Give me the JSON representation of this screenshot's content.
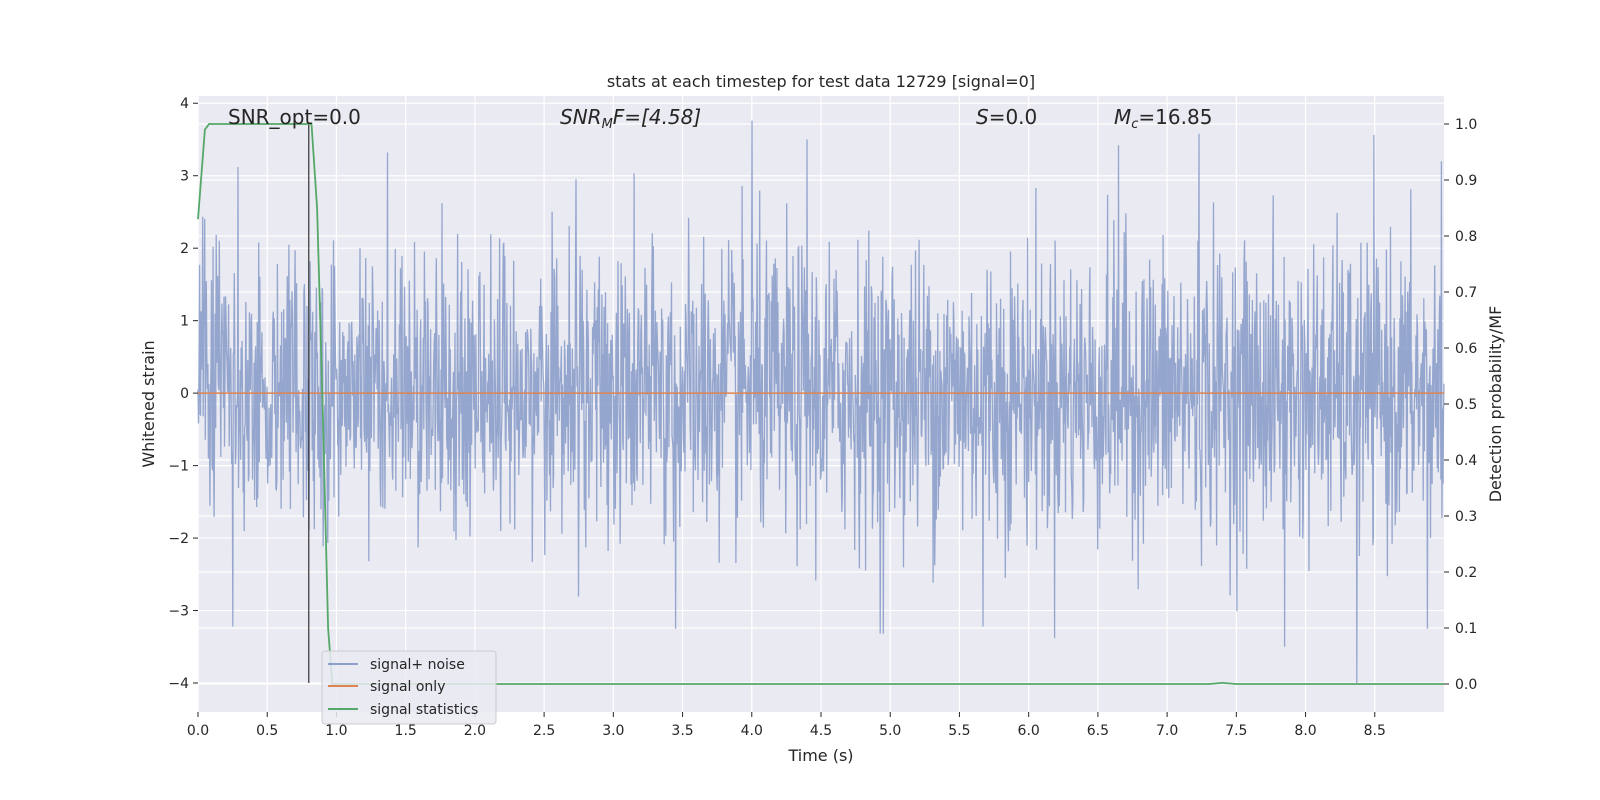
{
  "chart_data": {
    "type": "line",
    "title": "stats at each timestep for test data 12729 [signal=0]",
    "xlabel": "Time (s)",
    "ylabel": "Whitened strain",
    "y2label": "Detection probability/MF",
    "xlim": [
      0.0,
      9.0
    ],
    "ylim": [
      -4.4,
      4.1
    ],
    "y2lim": [
      -0.05,
      1.05
    ],
    "xticks": [
      "0.0",
      "0.5",
      "1.0",
      "1.5",
      "2.0",
      "2.5",
      "3.0",
      "3.5",
      "4.0",
      "4.5",
      "5.0",
      "5.5",
      "6.0",
      "6.5",
      "7.0",
      "7.5",
      "8.0",
      "8.5"
    ],
    "yticks": [
      "−4",
      "−3",
      "−2",
      "−1",
      "0",
      "1",
      "2",
      "3",
      "4"
    ],
    "y2ticks": [
      "0.0",
      "0.1",
      "0.2",
      "0.3",
      "0.4",
      "0.5",
      "0.6",
      "0.7",
      "0.8",
      "0.9",
      "1.0"
    ],
    "grid": true,
    "legend_position": "lower-left",
    "annotations": {
      "snr_opt": "SNR_opt=0.0",
      "snr_mf_base": "SNR",
      "snr_mf_sub": "M",
      "snr_mf_rest": "F=[4.58]",
      "s_base": "S",
      "s_rest": "=0.0",
      "mc_base": "M",
      "mc_sub": "c",
      "mc_rest": "=16.85"
    },
    "vertical_marker_x": 0.8,
    "series": [
      {
        "name": "signal+ noise",
        "color": "#8c9fca",
        "kind": "noise",
        "noise_sigma": 1.0,
        "peaks": [
          {
            "x": 0.29,
            "y": 3.12
          },
          {
            "x": 1.37,
            "y": 3.32
          },
          {
            "x": 4.0,
            "y": 3.76
          },
          {
            "x": 4.4,
            "y": 3.5
          },
          {
            "x": 6.65,
            "y": 3.42
          },
          {
            "x": 7.23,
            "y": 3.58
          },
          {
            "x": 8.98,
            "y": 3.2
          },
          {
            "x": 0.25,
            "y": -3.22
          },
          {
            "x": 3.45,
            "y": -3.25
          },
          {
            "x": 4.95,
            "y": -3.32
          },
          {
            "x": 5.67,
            "y": -3.22
          },
          {
            "x": 7.85,
            "y": -3.5
          },
          {
            "x": 8.37,
            "y": -4.0
          },
          {
            "x": 8.88,
            "y": -3.25
          }
        ]
      },
      {
        "name": "signal only",
        "color": "#dd8452",
        "kind": "flat",
        "value": 0.0
      },
      {
        "name": "signal statistics",
        "color": "#55a868",
        "kind": "line",
        "axis": "right",
        "x": [
          0.0,
          0.05,
          0.08,
          0.1,
          0.3,
          0.5,
          0.75,
          0.82,
          0.86,
          0.9,
          0.94,
          0.97,
          1.0,
          7.3,
          7.4,
          7.5,
          9.0
        ],
        "y": [
          0.83,
          0.99,
          1.0,
          1.0,
          1.0,
          1.0,
          1.0,
          1.0,
          0.85,
          0.5,
          0.1,
          0.0,
          0.0,
          0.0,
          0.002,
          0.0,
          0.0
        ]
      }
    ]
  }
}
